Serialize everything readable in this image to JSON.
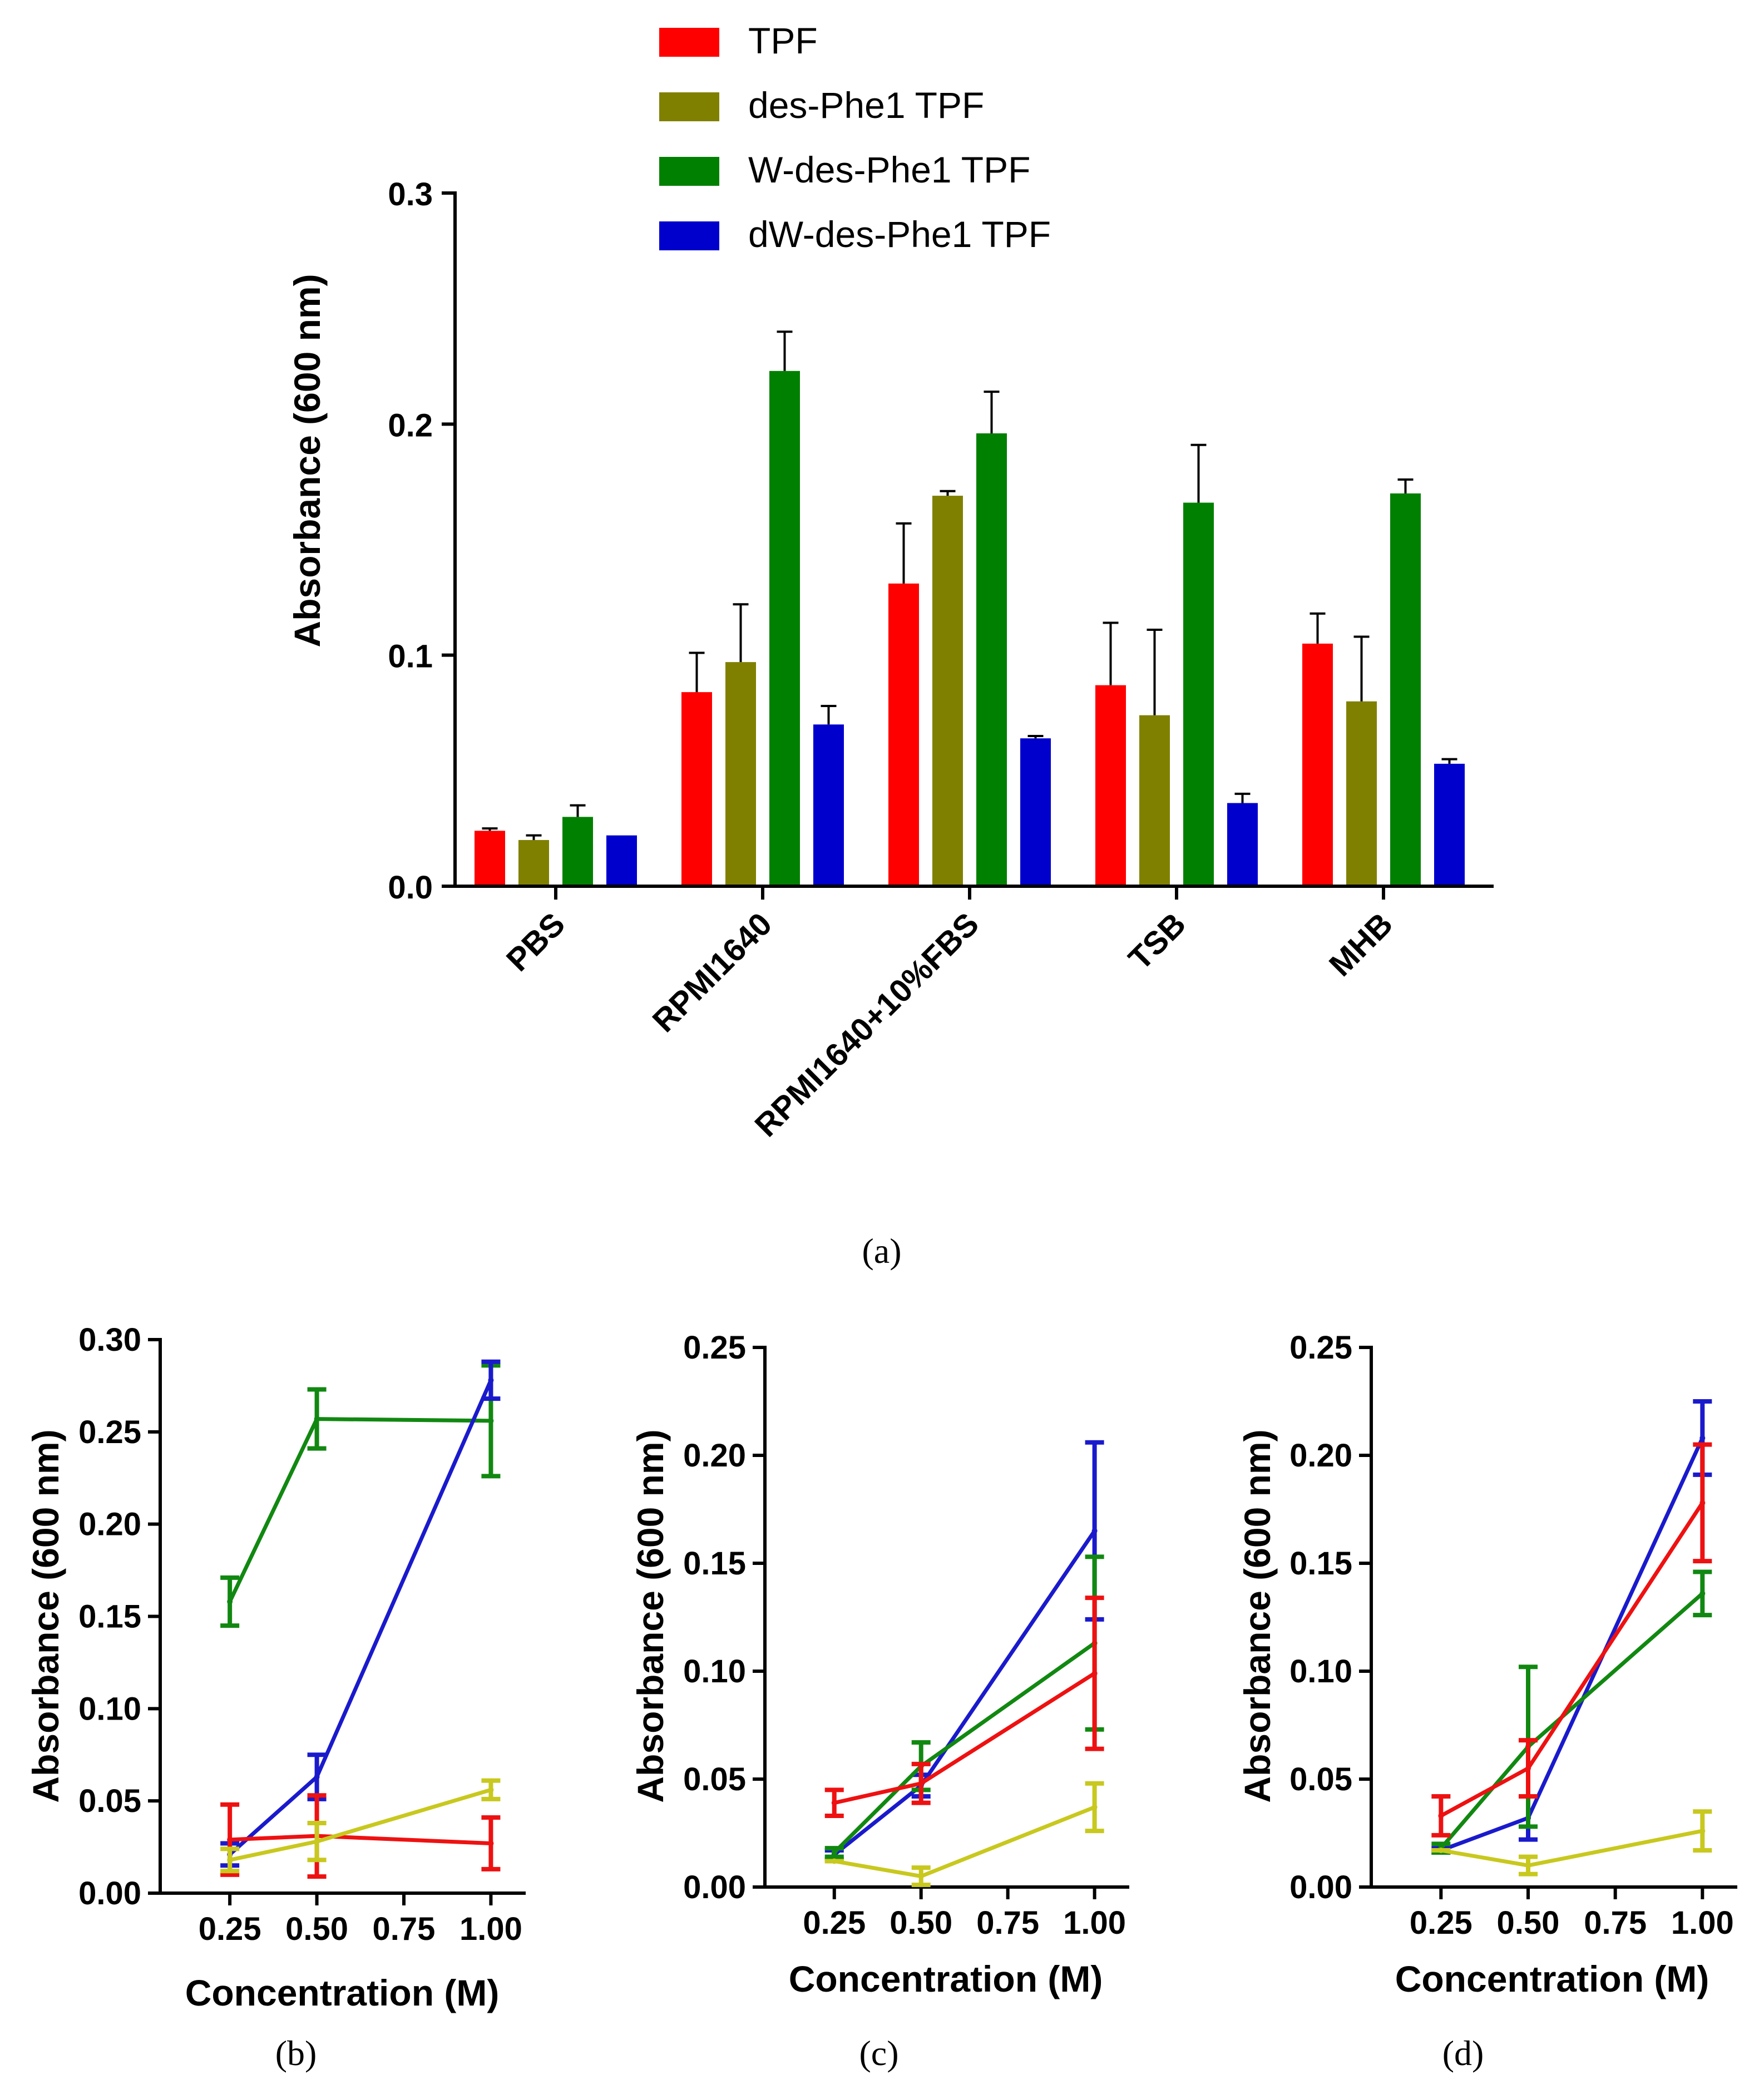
{
  "chart_data": [
    {
      "id": "a",
      "type": "bar",
      "caption": "(a)",
      "ylabel": "Absorbance (600 nm)",
      "xlabel": "",
      "ylim": [
        0,
        0.3
      ],
      "yticks": [
        "0.0",
        "0.1",
        "0.2",
        "0.3"
      ],
      "categories": [
        "PBS",
        "RPMI1640",
        "RPMI1640+10%FBS",
        "TSB",
        "MHB"
      ],
      "legend_position": "top",
      "series": [
        {
          "name": "TPF",
          "color": "#ff0000",
          "values": [
            0.024,
            0.084,
            0.131,
            0.087,
            0.105
          ],
          "errors": [
            0.001,
            0.017,
            0.026,
            0.027,
            0.013
          ]
        },
        {
          "name": "des-Phe1 TPF",
          "color": "#808000",
          "values": [
            0.02,
            0.097,
            0.169,
            0.074,
            0.08
          ],
          "errors": [
            0.002,
            0.025,
            0.002,
            0.037,
            0.028
          ]
        },
        {
          "name": "W-des-Phe1 TPF",
          "color": "#008000",
          "values": [
            0.03,
            0.223,
            0.196,
            0.166,
            0.17
          ],
          "errors": [
            0.005,
            0.017,
            0.018,
            0.025,
            0.006
          ]
        },
        {
          "name": "dW-des-Phe1 TPF",
          "color": "#0000cd",
          "values": [
            0.022,
            0.07,
            0.064,
            0.036,
            0.053
          ],
          "errors": [
            0.0,
            0.008,
            0.001,
            0.004,
            0.002
          ]
        }
      ]
    },
    {
      "id": "b",
      "type": "line",
      "caption": "(b)",
      "ylabel": "Absorbance (600 nm)",
      "xlabel": "Concentration (M)",
      "x": [
        0.25,
        0.5,
        1.0
      ],
      "xlim": [
        0.05,
        1.1
      ],
      "xticks": [
        "0.25",
        "0.50",
        "0.75",
        "1.00"
      ],
      "ylim": [
        0,
        0.3
      ],
      "yticks": [
        "0.00",
        "0.05",
        "0.10",
        "0.15",
        "0.20",
        "0.25",
        "0.30"
      ],
      "series": [
        {
          "name": "green",
          "color": "#118811",
          "values": [
            0.158,
            0.257,
            0.256
          ],
          "errors": [
            0.013,
            0.016,
            0.03
          ]
        },
        {
          "name": "blue",
          "color": "#1a1acc",
          "values": [
            0.021,
            0.063,
            0.278
          ],
          "errors": [
            0.006,
            0.012,
            0.01
          ]
        },
        {
          "name": "red",
          "color": "#ee1111",
          "values": [
            0.029,
            0.031,
            0.027
          ],
          "errors": [
            0.019,
            0.022,
            0.014
          ]
        },
        {
          "name": "yellow",
          "color": "#c8c81e",
          "values": [
            0.018,
            0.028,
            0.056
          ],
          "errors": [
            0.006,
            0.01,
            0.005
          ]
        }
      ]
    },
    {
      "id": "c",
      "type": "line",
      "caption": "(c)",
      "ylabel": "Absorbance (600 nm)",
      "xlabel": "Concentration (M)",
      "x": [
        0.25,
        0.5,
        1.0
      ],
      "xlim": [
        0.05,
        1.1
      ],
      "xticks": [
        "0.25",
        "0.50",
        "0.75",
        "1.00"
      ],
      "ylim": [
        0,
        0.25
      ],
      "yticks": [
        "0.00",
        "0.05",
        "0.10",
        "0.15",
        "0.20",
        "0.25"
      ],
      "series": [
        {
          "name": "blue",
          "color": "#1a1acc",
          "values": [
            0.015,
            0.047,
            0.165
          ],
          "errors": [
            0.002,
            0.005,
            0.041
          ]
        },
        {
          "name": "green",
          "color": "#118811",
          "values": [
            0.016,
            0.056,
            0.113
          ],
          "errors": [
            0.002,
            0.011,
            0.04
          ]
        },
        {
          "name": "red",
          "color": "#ee1111",
          "values": [
            0.039,
            0.048,
            0.099
          ],
          "errors": [
            0.006,
            0.009,
            0.035
          ]
        },
        {
          "name": "yellow",
          "color": "#c8c81e",
          "values": [
            0.012,
            0.005,
            0.037
          ],
          "errors": [
            0.0,
            0.004,
            0.011
          ]
        }
      ]
    },
    {
      "id": "d",
      "type": "line",
      "caption": "(d)",
      "ylabel": "Absorbance (600 nm)",
      "xlabel": "Concentration (M)",
      "x": [
        0.25,
        0.5,
        1.0
      ],
      "xlim": [
        0.05,
        1.1
      ],
      "xticks": [
        "0.25",
        "0.50",
        "0.75",
        "1.00"
      ],
      "ylim": [
        0,
        0.25
      ],
      "yticks": [
        "0.00",
        "0.05",
        "0.10",
        "0.15",
        "0.20",
        "0.25"
      ],
      "series": [
        {
          "name": "blue",
          "color": "#1a1acc",
          "values": [
            0.017,
            0.032,
            0.208
          ],
          "errors": [
            0.001,
            0.01,
            0.017
          ]
        },
        {
          "name": "green",
          "color": "#118811",
          "values": [
            0.018,
            0.065,
            0.136
          ],
          "errors": [
            0.002,
            0.037,
            0.01
          ]
        },
        {
          "name": "red",
          "color": "#ee1111",
          "values": [
            0.033,
            0.055,
            0.178
          ],
          "errors": [
            0.009,
            0.013,
            0.027
          ]
        },
        {
          "name": "yellow",
          "color": "#c8c81e",
          "values": [
            0.017,
            0.01,
            0.026
          ],
          "errors": [
            0.0,
            0.004,
            0.009
          ]
        }
      ]
    }
  ]
}
